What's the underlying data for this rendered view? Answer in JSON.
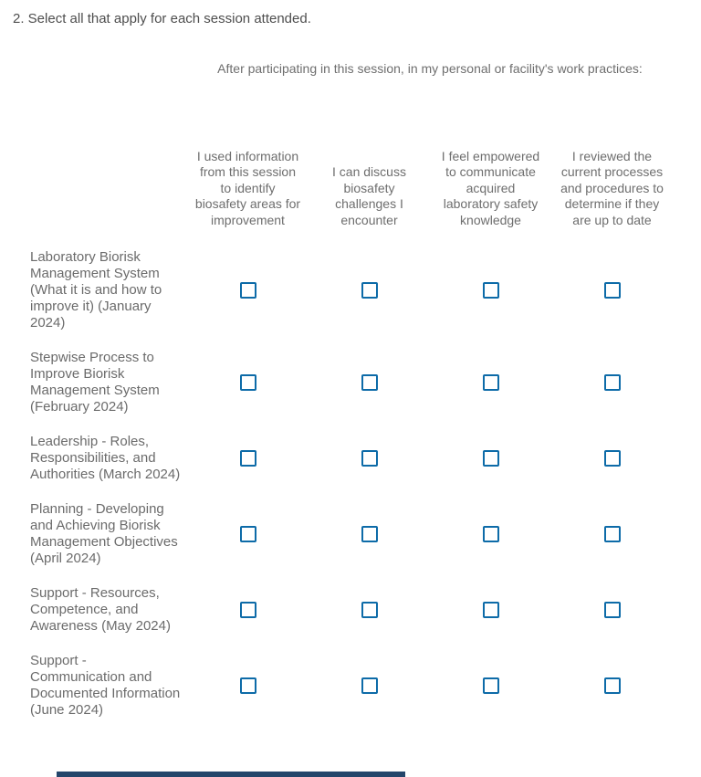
{
  "question": {
    "title": "2. Select all that apply for each session attended."
  },
  "matrix": {
    "group_header": "After participating in this session, in my personal or facility's work practices:",
    "columns": [
      "I used information from this session to identify biosafety areas for improvement",
      "I can discuss biosafety challenges I encounter",
      "I feel empowered to communicate acquired laboratory safety knowledge",
      "I reviewed the current processes and procedures to determine if they are up to date"
    ],
    "rows": [
      {
        "label": "Laboratory Biorisk Management System (What it is and how to improve it) (January 2024)",
        "checked": [
          false,
          false,
          false,
          false
        ]
      },
      {
        "label": "Stepwise Process to Improve Biorisk Management System (February 2024)",
        "checked": [
          false,
          false,
          false,
          false
        ]
      },
      {
        "label": "Leadership - Roles, Responsibilities, and Authorities (March 2024)",
        "checked": [
          false,
          false,
          false,
          false
        ]
      },
      {
        "label": "Planning - Developing and Achieving Biorisk Management Objectives (April 2024)",
        "checked": [
          false,
          false,
          false,
          false
        ]
      },
      {
        "label": "Support - Resources, Competence, and Awareness (May 2024)",
        "checked": [
          false,
          false,
          false,
          false
        ]
      },
      {
        "label": "Support - Communication and Documented Information (June 2024)",
        "checked": [
          false,
          false,
          false,
          false
        ]
      }
    ]
  },
  "colors": {
    "checkbox_border": "#0d6ba8",
    "bottom_bar": "#24466b",
    "title_text": "#4e4e4e",
    "body_text": "#6e6e6e"
  }
}
